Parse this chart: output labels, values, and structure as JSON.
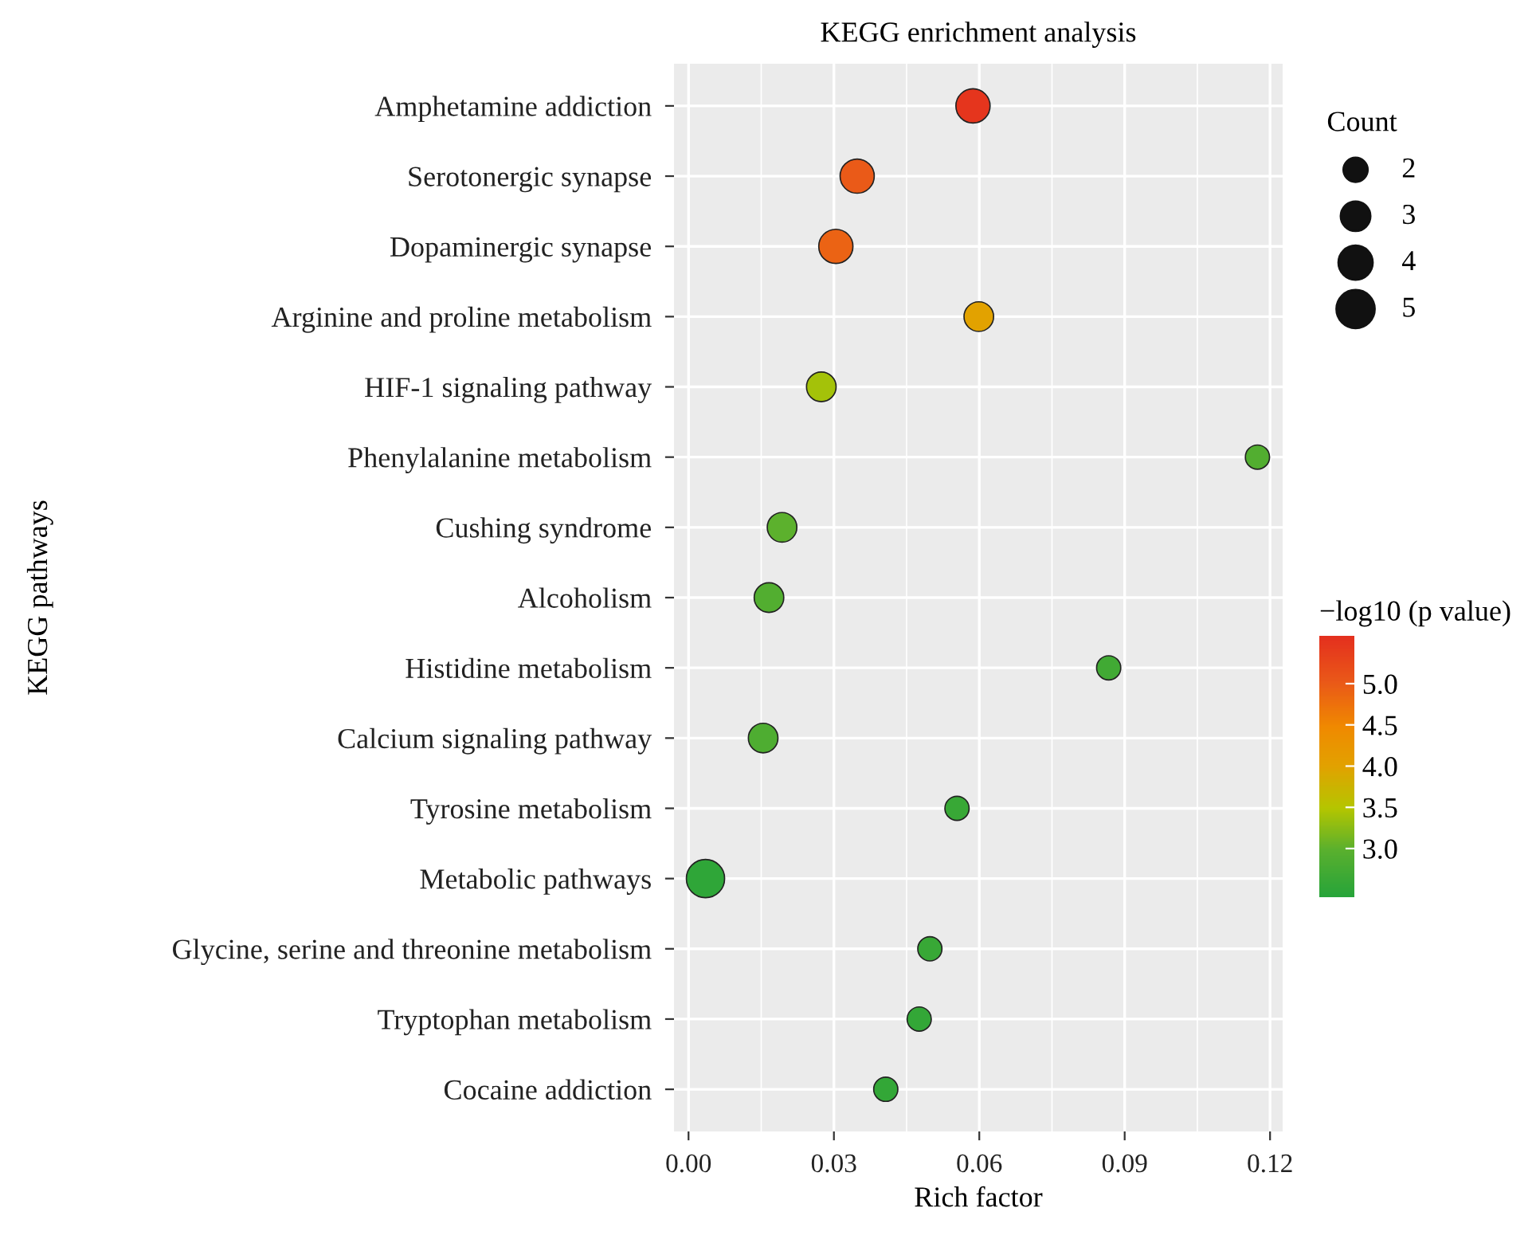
{
  "chart_data": {
    "type": "bubble",
    "orientation": "horizontal",
    "title": "KEGG enrichment analysis",
    "xlabel": "Rich factor",
    "ylabel": "KEGG pathways",
    "legend_title": "Count",
    "clabel": "−log10 (p value)",
    "categories": [
      "Amphetamine addiction",
      "Serotonergic synapse",
      "Dopaminergic synapse",
      "Arginine and proline metabolism",
      "HIF-1 signaling pathway",
      "Phenylalanine metabolism",
      "Cushing syndrome",
      "Alcoholism",
      "Histidine metabolism",
      "Calcium signaling pathway",
      "Tyrosine metabolism",
      "Metabolic pathways",
      "Glycine, serine and threonine metabolism",
      "Tryptophan metabolism",
      "Cocaine addiction"
    ],
    "values": [
      0.0587,
      0.0348,
      0.0304,
      0.0599,
      0.0274,
      0.1174,
      0.0193,
      0.0166,
      0.0867,
      0.0154,
      0.0554,
      0.0035,
      0.0498,
      0.0476,
      0.0407
    ],
    "sizes": [
      4,
      4,
      4,
      3,
      3,
      2,
      3,
      3,
      2,
      3,
      2,
      5,
      2,
      2,
      2
    ],
    "size_legend": [
      2,
      3,
      4,
      5
    ],
    "cvalues": [
      5.5,
      5.0,
      4.9,
      4.0,
      3.4,
      2.9,
      3.0,
      2.9,
      2.7,
      2.85,
      2.6,
      2.5,
      2.6,
      2.55,
      2.55
    ],
    "clim": [
      2.41,
      5.58
    ],
    "cticks": [
      {
        "value": 3.0,
        "label": "3.0"
      },
      {
        "value": 3.5,
        "label": "3.5"
      },
      {
        "value": 4.0,
        "label": "4.0"
      },
      {
        "value": 4.5,
        "label": "4.5"
      },
      {
        "value": 5.0,
        "label": "5.0"
      }
    ],
    "xlim": [
      -0.003,
      0.1226
    ],
    "xticks": [
      {
        "value": 0.0,
        "label": "0.00"
      },
      {
        "value": 0.03,
        "label": "0.03"
      },
      {
        "value": 0.06,
        "label": "0.06"
      },
      {
        "value": 0.09,
        "label": "0.09"
      },
      {
        "value": 0.12,
        "label": "0.12"
      }
    ],
    "grid": true
  }
}
